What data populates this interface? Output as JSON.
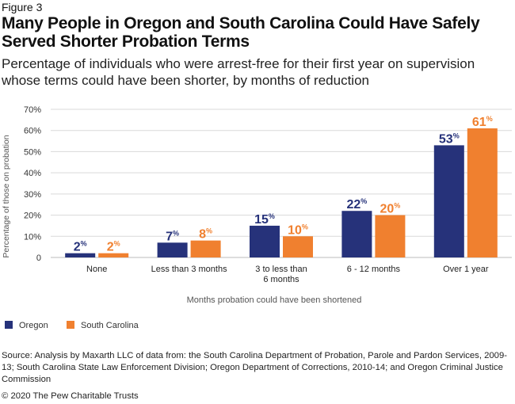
{
  "figure_label": "Figure 3",
  "title": "Many People in Oregon and South Carolina Could Have Safely Served Shorter Probation Terms",
  "subtitle": "Percentage of individuals who were arrest-free for their first year on supervision whose terms could have been shorter, by months of reduction",
  "colors": {
    "oregon": "#26327a",
    "south_carolina": "#f0802f",
    "grid": "#d9d9d9"
  },
  "chart_data": {
    "type": "bar",
    "categories": [
      "None",
      "Less than 3 months",
      "3 to less than 6 months",
      "6 - 12 months",
      "Over 1 year"
    ],
    "category_lines": [
      [
        "None"
      ],
      [
        "Less than 3 months"
      ],
      [
        "3 to less than",
        "6 months"
      ],
      [
        "6 - 12 months"
      ],
      [
        "Over 1 year"
      ]
    ],
    "series": [
      {
        "name": "Oregon",
        "values": [
          2,
          7,
          15,
          22,
          53
        ],
        "labels": [
          "2",
          "7",
          "15",
          "22",
          "53"
        ]
      },
      {
        "name": "South Carolina",
        "values": [
          2,
          8,
          10,
          20,
          61
        ],
        "labels": [
          "2",
          "8",
          "10",
          "20",
          "61"
        ]
      }
    ],
    "value_suffix": "%",
    "ylim": [
      0,
      70
    ],
    "yticks": [
      0,
      10,
      20,
      30,
      40,
      50,
      60,
      70
    ],
    "ytick_labels": [
      "0",
      "10%",
      "20%",
      "30%",
      "40%",
      "50%",
      "60%",
      "70%"
    ],
    "xlabel": "Months probation could have been shortened",
    "ylabel": "Percentage of those on probation",
    "grid": true,
    "legend_position": "bottom-left"
  },
  "source": "Source: Analysis by Maxarth LLC of data from: the South Carolina Department of Probation, Parole and Pardon Services, 2009-13; South Carolina State Law Enforcement Division; Oregon Department of Corrections, 2010-14; and Oregon Criminal Justice Commission",
  "copyright": "© 2020 The Pew Charitable Trusts"
}
